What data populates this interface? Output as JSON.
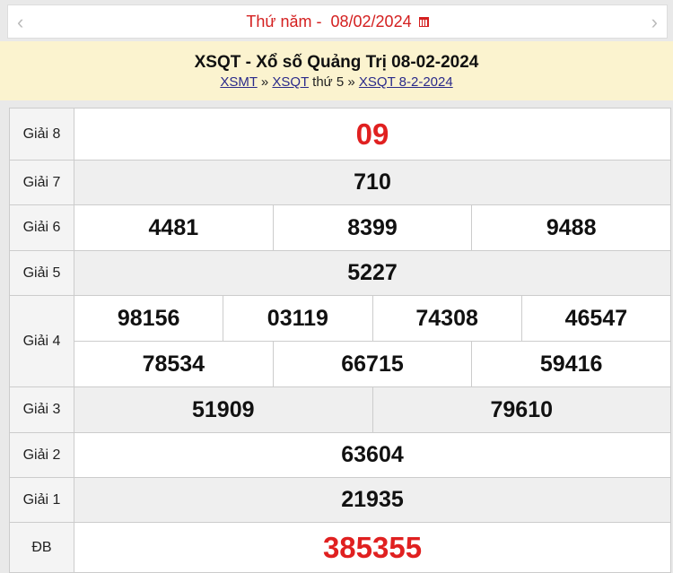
{
  "datebar": {
    "weekday": "Thứ năm -",
    "date": "08/02/2024",
    "prev_icon": "chevron-left-icon",
    "next_icon": "chevron-right-icon",
    "calendar_icon": "calendar-icon"
  },
  "header": {
    "title": "XSQT - Xổ số Quảng Trị 08-02-2024",
    "crumb1": "XSMT",
    "sep1": "»",
    "crumb2": "XSQT",
    "crumb2_suffix": "thứ 5",
    "sep2": "»",
    "crumb3": "XSQT 8-2-2024"
  },
  "results": {
    "g8": {
      "label": "Giải 8",
      "values": [
        "09"
      ]
    },
    "g7": {
      "label": "Giải 7",
      "values": [
        "710"
      ]
    },
    "g6": {
      "label": "Giải 6",
      "values": [
        "4481",
        "8399",
        "9488"
      ]
    },
    "g5": {
      "label": "Giải 5",
      "values": [
        "5227"
      ]
    },
    "g4": {
      "label": "Giải 4",
      "values": [
        "98156",
        "03119",
        "74308",
        "46547",
        "78534",
        "66715",
        "59416"
      ]
    },
    "g3": {
      "label": "Giải 3",
      "values": [
        "51909",
        "79610"
      ]
    },
    "g2": {
      "label": "Giải 2",
      "values": [
        "63604"
      ]
    },
    "g1": {
      "label": "Giải 1",
      "values": [
        "21935"
      ]
    },
    "db": {
      "label": "ĐB",
      "values": [
        "385355"
      ]
    }
  },
  "colors": {
    "accent_red": "#e02020",
    "header_bg": "#fbf3cf"
  }
}
